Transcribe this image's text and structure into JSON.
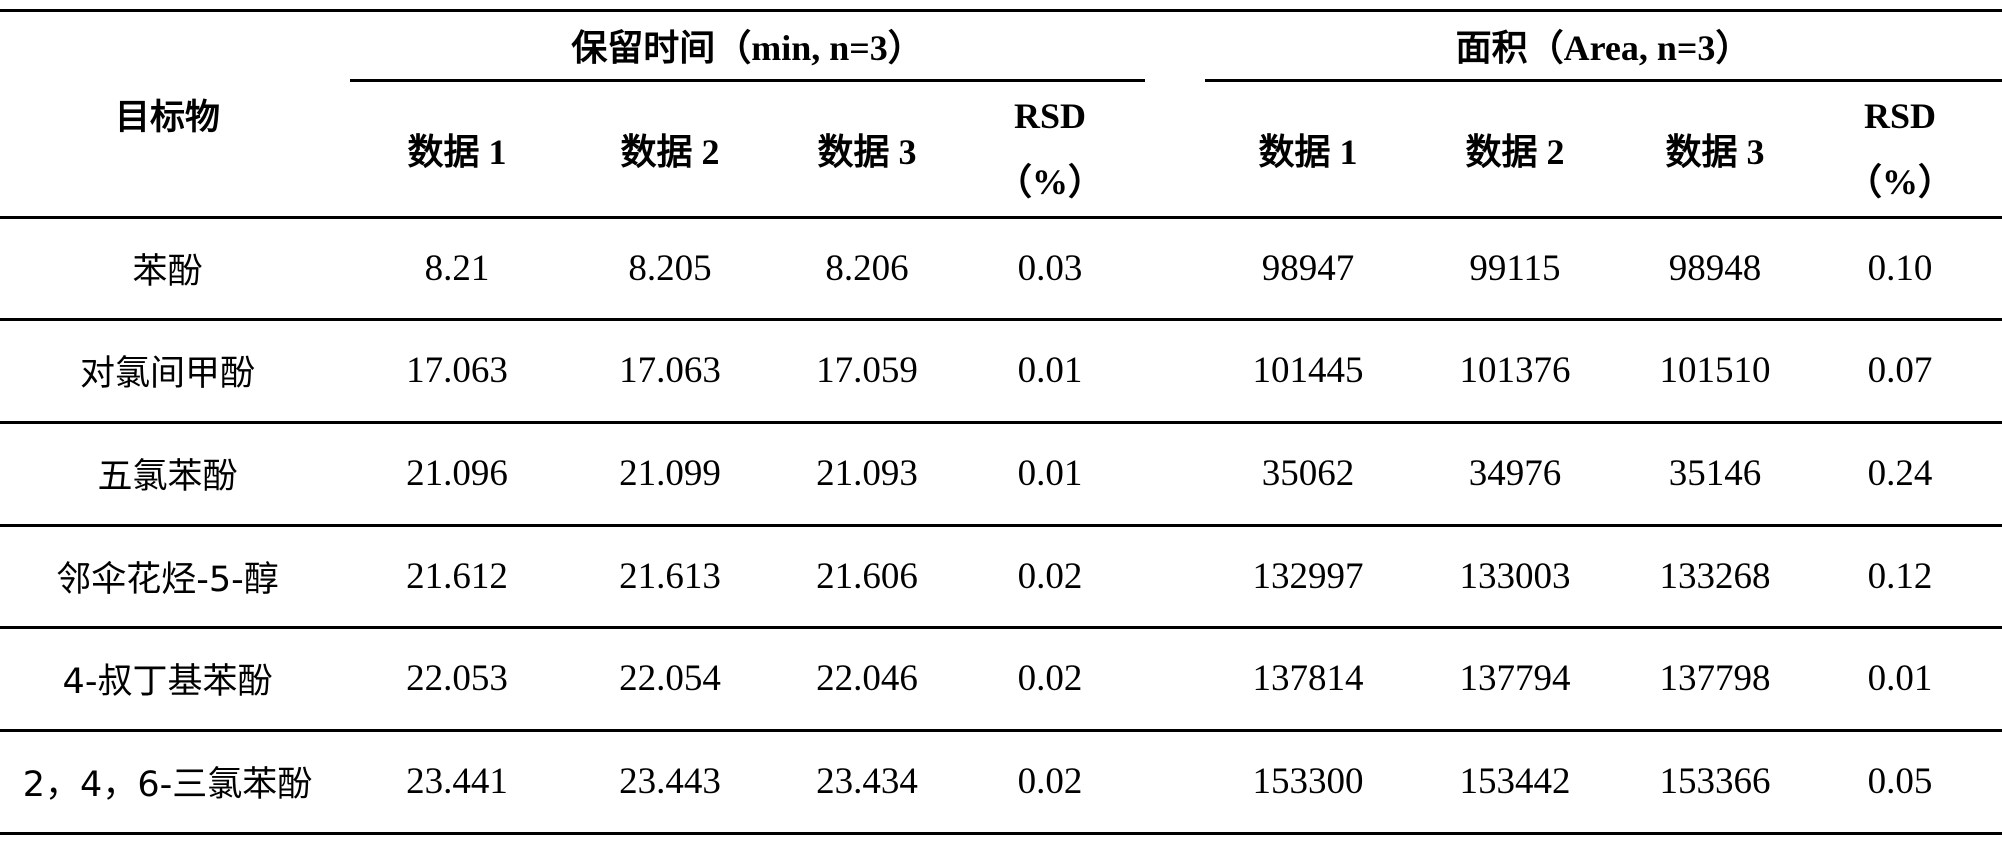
{
  "table": {
    "header": {
      "target_label": "目标物",
      "group_rt": "保留时间（min, n=3）",
      "group_area": "面积（Area, n=3）",
      "columns": [
        "数据 1",
        "数据 2",
        "数据 3",
        "RSD",
        "（%）"
      ]
    },
    "rows": [
      {
        "name": "苯酚",
        "rt": [
          "8.21",
          "8.205",
          "8.206",
          "0.03"
        ],
        "area": [
          "98947",
          "99115",
          "98948",
          "0.10"
        ]
      },
      {
        "name": "对氯间甲酚",
        "rt": [
          "17.063",
          "17.063",
          "17.059",
          "0.01"
        ],
        "area": [
          "101445",
          "101376",
          "101510",
          "0.07"
        ]
      },
      {
        "name": "五氯苯酚",
        "rt": [
          "21.096",
          "21.099",
          "21.093",
          "0.01"
        ],
        "area": [
          "35062",
          "34976",
          "35146",
          "0.24"
        ]
      },
      {
        "name": "邻伞花烃-5-醇",
        "rt": [
          "21.612",
          "21.613",
          "21.606",
          "0.02"
        ],
        "area": [
          "132997",
          "133003",
          "133268",
          "0.12"
        ]
      },
      {
        "name": "4-叔丁基苯酚",
        "rt": [
          "22.053",
          "22.054",
          "22.046",
          "0.02"
        ],
        "area": [
          "137814",
          "137794",
          "137798",
          "0.01"
        ]
      },
      {
        "name": "2，4，6-三氯苯酚",
        "rt": [
          "23.441",
          "23.443",
          "23.434",
          "0.02"
        ],
        "area": [
          "153300",
          "153442",
          "153366",
          "0.05"
        ]
      }
    ]
  }
}
